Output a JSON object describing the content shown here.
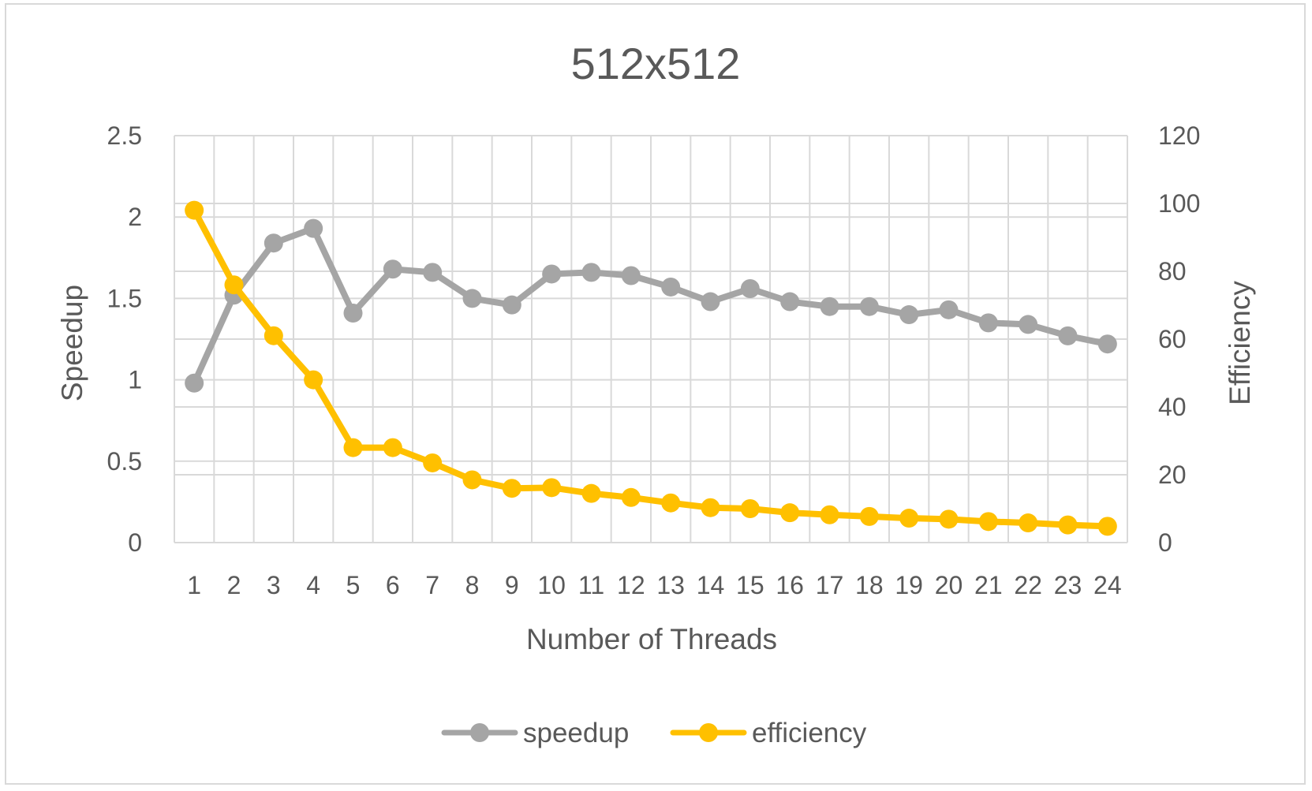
{
  "chart_data": {
    "type": "line",
    "title": "512x512",
    "xlabel": "Number of Threads",
    "ylabel": "Speedup",
    "y2label": "Efficiency",
    "categories": [
      "1",
      "2",
      "3",
      "4",
      "5",
      "6",
      "7",
      "8",
      "9",
      "10",
      "11",
      "12",
      "13",
      "14",
      "15",
      "16",
      "17",
      "18",
      "19",
      "20",
      "21",
      "22",
      "23",
      "24"
    ],
    "ylim": [
      0,
      2.5
    ],
    "yticks": [
      "0",
      "0.5",
      "1",
      "1.5",
      "2",
      "2.5"
    ],
    "y2lim": [
      0,
      120
    ],
    "y2ticks": [
      "0",
      "20",
      "40",
      "60",
      "80",
      "100",
      "120"
    ],
    "grid": true,
    "legend_position": "bottom",
    "series": [
      {
        "name": "speedup",
        "axis": "left",
        "color": "#a5a5a5",
        "values": [
          0.98,
          1.52,
          1.84,
          1.93,
          1.41,
          1.68,
          1.66,
          1.5,
          1.46,
          1.65,
          1.66,
          1.64,
          1.57,
          1.48,
          1.56,
          1.48,
          1.45,
          1.45,
          1.4,
          1.43,
          1.35,
          1.34,
          1.27,
          1.22
        ]
      },
      {
        "name": "efficiency",
        "axis": "right",
        "color": "#ffc000",
        "values": [
          98,
          76,
          61,
          48,
          28,
          28,
          23.5,
          18.5,
          16,
          16.2,
          14.5,
          13.3,
          11.7,
          10.3,
          10,
          8.8,
          8.2,
          7.7,
          7.2,
          6.9,
          6.2,
          5.8,
          5.2,
          4.8
        ]
      }
    ]
  }
}
